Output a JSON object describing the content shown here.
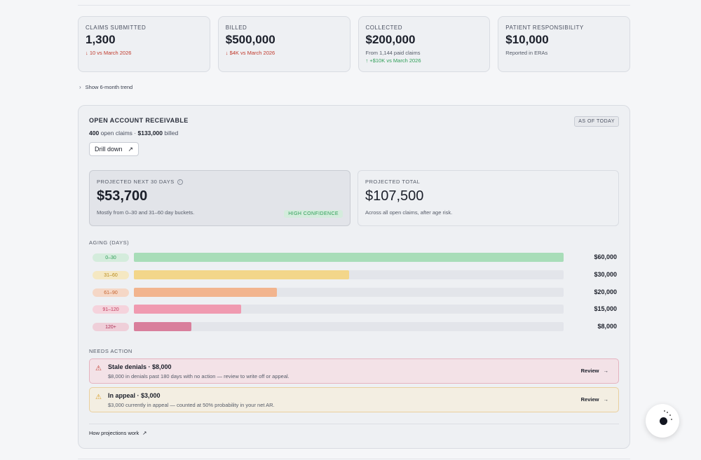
{
  "kpis": [
    {
      "label": "CLAIMS SUBMITTED",
      "value": "1,300",
      "sub1": "↓ 10 vs March 2026",
      "sub2": ""
    },
    {
      "label": "BILLED",
      "value": "$500,000",
      "sub1": "↓ $4K vs March 2026",
      "sub2": ""
    },
    {
      "label": "COLLECTED",
      "value": "$200,000",
      "sub1": "From 1,144 paid claims",
      "sub2": "↑ +$10K vs March 2026"
    },
    {
      "label": "PATIENT RESPONSIBILITY",
      "value": "$10,000",
      "sub1": "Reported in ERAs",
      "sub2": ""
    }
  ],
  "trend_toggle": "Show 6-month trend",
  "ar": {
    "title": "OPEN ACCOUNT RECEIVABLE",
    "as_of": "AS OF TODAY",
    "open_count": "400",
    "open_text": "open claims ·",
    "billed_amount": "$133,000",
    "billed_text": "billed",
    "drill_label": "Drill down",
    "proj30": {
      "label": "PROJECTED NEXT 30 DAYS",
      "value": "$53,700",
      "sub": "Mostly from 0–30 and 31–60 day buckets.",
      "badge": "HIGH CONFIDENCE"
    },
    "projtotal": {
      "label": "PROJECTED TOTAL",
      "value": "$107,500",
      "sub": "Across all open claims, after age risk."
    },
    "aging_label": "AGING (DAYS)",
    "aging": [
      {
        "bucket": "0–30",
        "amount": "$60,000",
        "value": 60000,
        "color": "#a8ddb8",
        "pill_bg": "#d4ecdc",
        "pill_fg": "#2e9e57"
      },
      {
        "bucket": "31–60",
        "amount": "$30,000",
        "value": 30000,
        "color": "#f3d68a",
        "pill_bg": "#f5e8c2",
        "pill_fg": "#b7891a"
      },
      {
        "bucket": "61–90",
        "amount": "$20,000",
        "value": 20000,
        "color": "#f2b48e",
        "pill_bg": "#f5d7c6",
        "pill_fg": "#c4632e"
      },
      {
        "bucket": "91–120",
        "amount": "$15,000",
        "value": 15000,
        "color": "#f09ab0",
        "pill_bg": "#f5d3dc",
        "pill_fg": "#c0395a"
      },
      {
        "bucket": "120+",
        "amount": "$8,000",
        "value": 8000,
        "color": "#d97f9c",
        "pill_bg": "#efcfd9",
        "pill_fg": "#a8284f"
      }
    ],
    "aging_max": 60000,
    "needs_label": "NEEDS ACTION",
    "actions": [
      {
        "title": "Stale denials · $8,000",
        "desc": "$8,000 in denials past 180 days with no action — review to write off or appeal.",
        "button": "Review"
      },
      {
        "title": "In appeal · $3,000",
        "desc": "$3,000 currently in appeal — counted at 50% probability in your net AR.",
        "button": "Review"
      }
    ],
    "how_link": "How projections work"
  }
}
